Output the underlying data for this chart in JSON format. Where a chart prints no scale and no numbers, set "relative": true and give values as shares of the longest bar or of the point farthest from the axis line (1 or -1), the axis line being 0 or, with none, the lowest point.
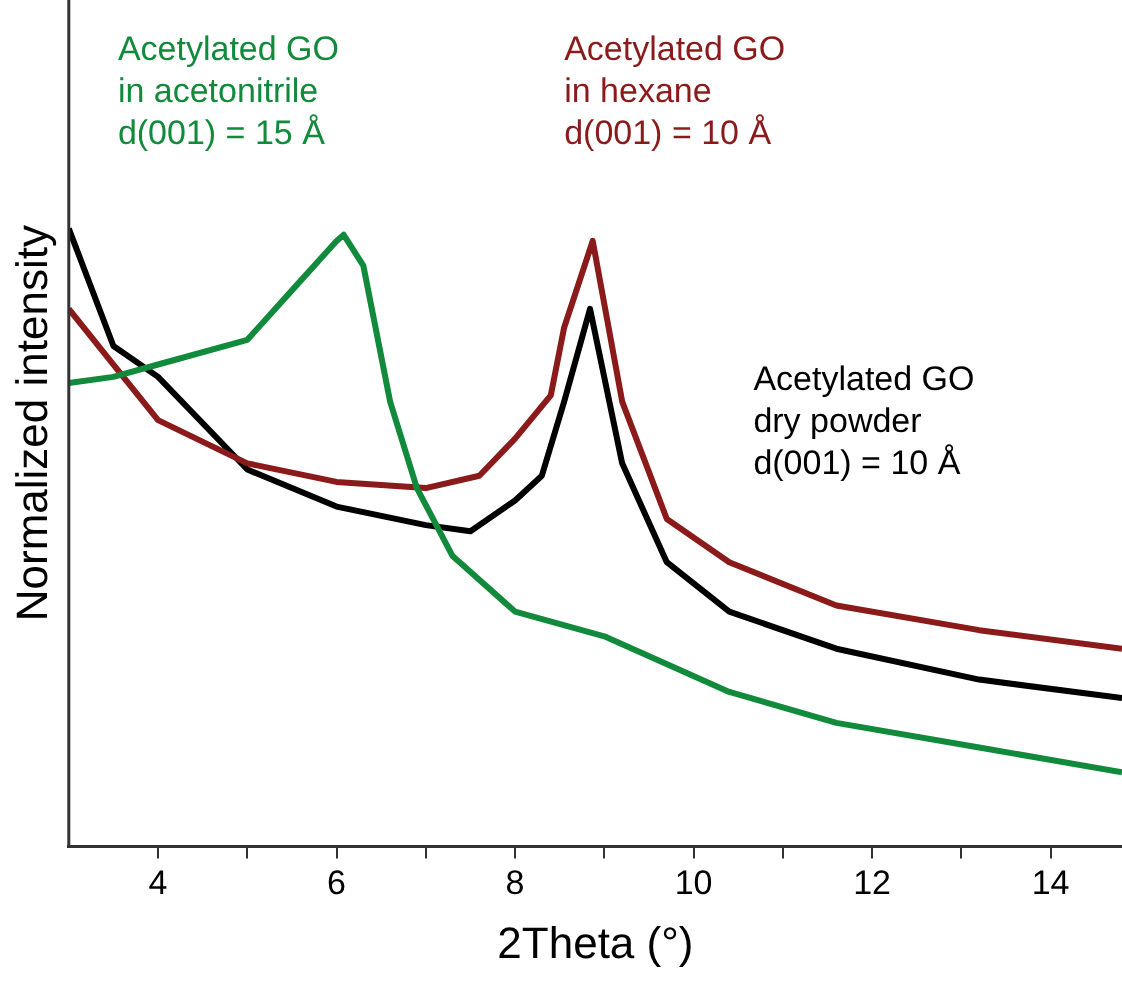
{
  "chart_data": {
    "type": "line",
    "relative": true,
    "xlabel": "2Theta (°)",
    "ylabel": "Normalized intensity",
    "xlim": [
      3,
      14.8
    ],
    "xticks": [
      4,
      {
        "value": 5,
        "label": null
      },
      6,
      {
        "value": 7,
        "label": null
      },
      8,
      {
        "value": 9,
        "label": null
      },
      10,
      {
        "value": 11,
        "label": null
      },
      12,
      {
        "value": 13,
        "label": null
      },
      14
    ],
    "grid": false,
    "legend": false,
    "marker": "none",
    "line_style": "solid",
    "series": [
      {
        "name": "Acetylated GO\nin acetonitrile\nd(001) = 15 Å",
        "color": "#128a3c",
        "x": [
          3,
          3.5,
          4,
          5,
          5.5,
          6,
          6.08,
          6.3,
          6.6,
          6.9,
          7.3,
          8,
          9,
          10.4,
          11.6,
          13.2,
          14.8
        ],
        "values": [
          0.75,
          0.76,
          0.78,
          0.82,
          0.9,
          0.98,
          0.99,
          0.94,
          0.72,
          0.58,
          0.47,
          0.38,
          0.34,
          0.25,
          0.2,
          0.16,
          0.12
        ]
      },
      {
        "name": "Acetylated GO\nin hexane\nd(001) = 10 Å",
        "color": "#8b1a1a",
        "x": [
          3,
          3.5,
          4,
          5,
          6,
          7,
          7.6,
          8,
          8.4,
          8.55,
          8.87,
          9.2,
          9.7,
          10.4,
          11.6,
          13.2,
          14.8
        ],
        "values": [
          0.87,
          0.78,
          0.69,
          0.62,
          0.59,
          0.58,
          0.6,
          0.66,
          0.73,
          0.84,
          0.98,
          0.72,
          0.53,
          0.46,
          0.39,
          0.35,
          0.32
        ]
      },
      {
        "name": "Acetylated GO\ndry powder\nd(001) = 10 Å",
        "color": "#000000",
        "x": [
          3,
          3.5,
          4,
          5,
          6,
          7,
          7.5,
          8,
          8.3,
          8.55,
          8.84,
          9.2,
          9.7,
          10.4,
          11.6,
          13.2,
          14.8
        ],
        "values": [
          1,
          0.81,
          0.76,
          0.61,
          0.55,
          0.52,
          0.51,
          0.56,
          0.6,
          0.72,
          0.87,
          0.62,
          0.46,
          0.38,
          0.32,
          0.27,
          0.24
        ]
      }
    ]
  }
}
